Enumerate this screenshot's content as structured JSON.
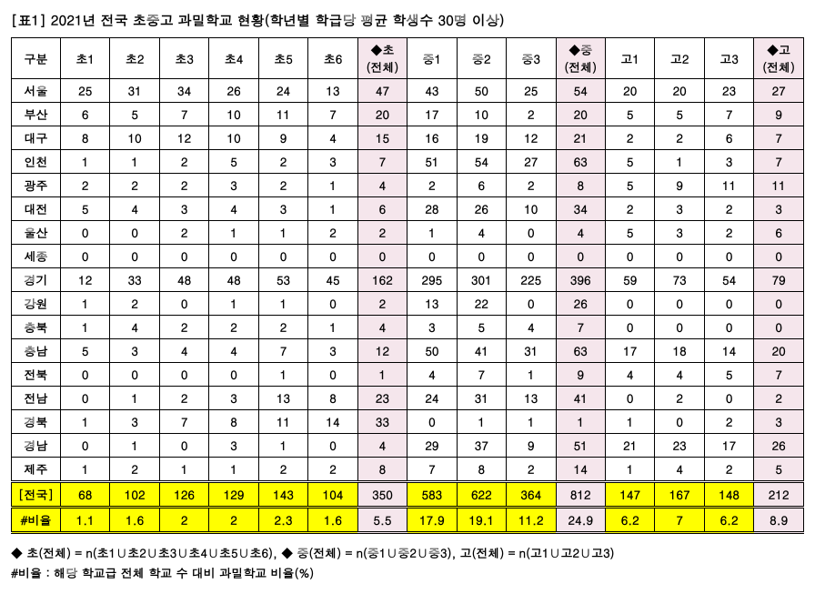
{
  "title": "[표1] 2021년 전국 초중고 과밀학교 현황(학년별 학급당 평균 학생수 30명 이상)",
  "headers": {
    "label": "구분",
    "cols": [
      "초1",
      "초2",
      "초3",
      "초4",
      "초5",
      "초6",
      "◆초\n(전체)",
      "중1",
      "중2",
      "중3",
      "◆중\n(전체)",
      "고1",
      "고2",
      "고3",
      "◆고\n(전체)"
    ]
  },
  "pinkCols": [
    6,
    10,
    14
  ],
  "regions": [
    {
      "name": "서울",
      "v": [
        25,
        31,
        34,
        26,
        24,
        13,
        47,
        43,
        50,
        25,
        54,
        20,
        20,
        23,
        27
      ]
    },
    {
      "name": "부산",
      "v": [
        6,
        5,
        7,
        10,
        11,
        7,
        20,
        17,
        10,
        2,
        20,
        5,
        5,
        7,
        9
      ]
    },
    {
      "name": "대구",
      "v": [
        8,
        10,
        12,
        10,
        9,
        4,
        15,
        16,
        19,
        12,
        21,
        2,
        2,
        6,
        7
      ]
    },
    {
      "name": "인천",
      "v": [
        1,
        1,
        2,
        5,
        2,
        3,
        7,
        51,
        54,
        27,
        63,
        5,
        1,
        3,
        7
      ]
    },
    {
      "name": "광주",
      "v": [
        2,
        2,
        2,
        3,
        2,
        1,
        4,
        2,
        6,
        2,
        8,
        5,
        9,
        11,
        11
      ]
    },
    {
      "name": "대전",
      "v": [
        5,
        4,
        3,
        4,
        3,
        1,
        6,
        28,
        26,
        10,
        34,
        2,
        3,
        2,
        3
      ]
    },
    {
      "name": "울산",
      "v": [
        0,
        0,
        2,
        1,
        1,
        2,
        2,
        1,
        4,
        0,
        4,
        5,
        3,
        2,
        6
      ]
    },
    {
      "name": "세종",
      "v": [
        0,
        0,
        0,
        0,
        0,
        0,
        0,
        0,
        0,
        0,
        0,
        0,
        0,
        0,
        0
      ]
    },
    {
      "name": "경기",
      "v": [
        12,
        33,
        48,
        48,
        53,
        45,
        162,
        295,
        301,
        225,
        396,
        59,
        73,
        54,
        79
      ]
    },
    {
      "name": "강원",
      "v": [
        1,
        2,
        0,
        1,
        1,
        0,
        2,
        13,
        22,
        0,
        26,
        0,
        0,
        0,
        0
      ]
    },
    {
      "name": "충북",
      "v": [
        1,
        4,
        2,
        2,
        2,
        1,
        4,
        3,
        5,
        4,
        7,
        0,
        0,
        0,
        0
      ]
    },
    {
      "name": "충남",
      "v": [
        5,
        3,
        4,
        4,
        7,
        3,
        12,
        50,
        41,
        31,
        63,
        17,
        18,
        14,
        20
      ]
    },
    {
      "name": "전북",
      "v": [
        0,
        0,
        0,
        0,
        1,
        0,
        1,
        4,
        7,
        1,
        9,
        4,
        4,
        5,
        7
      ]
    },
    {
      "name": "전남",
      "v": [
        0,
        1,
        2,
        3,
        13,
        8,
        23,
        24,
        31,
        13,
        41,
        0,
        2,
        0,
        2
      ]
    },
    {
      "name": "경북",
      "v": [
        1,
        3,
        7,
        8,
        11,
        14,
        33,
        0,
        1,
        1,
        1,
        1,
        0,
        2,
        3
      ]
    },
    {
      "name": "경남",
      "v": [
        0,
        1,
        0,
        3,
        1,
        0,
        4,
        29,
        37,
        9,
        51,
        21,
        23,
        17,
        26
      ]
    },
    {
      "name": "제주",
      "v": [
        1,
        2,
        1,
        1,
        2,
        2,
        8,
        7,
        8,
        2,
        14,
        1,
        4,
        2,
        5
      ]
    }
  ],
  "total": {
    "name": "[전국]",
    "v": [
      68,
      102,
      126,
      129,
      143,
      104,
      350,
      583,
      622,
      364,
      812,
      147,
      167,
      148,
      212
    ]
  },
  "ratio": {
    "name": "#비율",
    "v": [
      1.1,
      1.6,
      2.0,
      2.0,
      2.3,
      1.6,
      5.5,
      17.9,
      19.1,
      11.2,
      24.9,
      6.2,
      7.0,
      6.2,
      8.9
    ]
  },
  "footer1": "◆  초(전체) = n(초1∪초2∪초3∪초4∪초5∪초6), ◆  중(전체) = n(중1∪중2∪중3),  고(전체) = n(고1∪고2∪고3)",
  "footer2": "#비율 : 해당 학교급 전체 학교 수 대비 과밀학교 비율(%)"
}
